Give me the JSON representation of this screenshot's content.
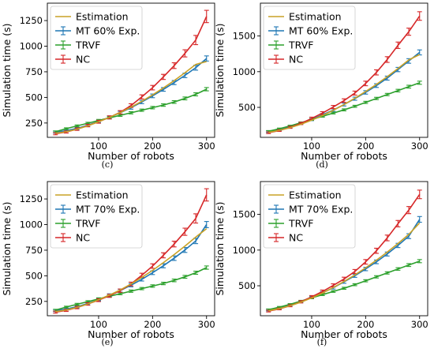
{
  "chart_data": [
    {
      "type": "line",
      "caption": "(c)",
      "xlabel": "Number of robots",
      "ylabel": "Simulation time (s)",
      "xlim": [
        5,
        315
      ],
      "ylim": [
        110,
        1420
      ],
      "xticks": [
        100,
        200,
        300
      ],
      "yticks": [
        250,
        500,
        750,
        1000,
        1250
      ],
      "legend_position": "top-left",
      "grid": false,
      "x": [
        20,
        40,
        60,
        80,
        100,
        120,
        140,
        160,
        180,
        200,
        220,
        240,
        260,
        280,
        300
      ],
      "series": [
        {
          "name": "Estimation",
          "style": "line",
          "color": "#c9a227",
          "values": [
            150,
            165,
            190,
            222,
            262,
            305,
            352,
            405,
            462,
            525,
            592,
            664,
            741,
            822,
            850
          ]
        },
        {
          "name": "MT 60% Exp.",
          "style": "errorbar",
          "color": "#1f77b4",
          "values": [
            160,
            175,
            197,
            228,
            265,
            305,
            350,
            400,
            455,
            515,
            578,
            645,
            715,
            790,
            880
          ],
          "errors": [
            10,
            10,
            12,
            12,
            12,
            14,
            14,
            15,
            16,
            18,
            18,
            20,
            22,
            24,
            25
          ]
        },
        {
          "name": "TRVF",
          "style": "errorbar",
          "color": "#2ca02c",
          "values": [
            165,
            195,
            222,
            248,
            275,
            300,
            325,
            350,
            375,
            400,
            425,
            455,
            490,
            530,
            580
          ],
          "errors": [
            8,
            8,
            9,
            9,
            10,
            10,
            10,
            11,
            11,
            12,
            12,
            13,
            14,
            15,
            16
          ]
        },
        {
          "name": "NC",
          "style": "errorbar",
          "color": "#d62728",
          "values": [
            145,
            162,
            190,
            225,
            262,
            305,
            355,
            420,
            505,
            595,
            700,
            810,
            930,
            1060,
            1290
          ],
          "errors": [
            10,
            10,
            12,
            12,
            14,
            15,
            16,
            18,
            20,
            22,
            25,
            28,
            35,
            45,
            60
          ]
        }
      ]
    },
    {
      "type": "line",
      "caption": "(d)",
      "xlabel": "Number of robots",
      "ylabel": "Simulation time (s)",
      "xlim": [
        5,
        315
      ],
      "ylim": [
        80,
        1960
      ],
      "xticks": [
        100,
        200,
        300
      ],
      "yticks": [
        500,
        1000,
        1500
      ],
      "legend_position": "top-left",
      "grid": false,
      "x": [
        20,
        40,
        60,
        80,
        100,
        120,
        140,
        160,
        180,
        200,
        220,
        240,
        260,
        280,
        300
      ],
      "series": [
        {
          "name": "Estimation",
          "style": "line",
          "color": "#c9a227",
          "values": [
            150,
            178,
            215,
            262,
            320,
            385,
            458,
            540,
            628,
            722,
            822,
            930,
            1045,
            1165,
            1240
          ]
        },
        {
          "name": "MT 60% Exp.",
          "style": "errorbar",
          "color": "#1f77b4",
          "values": [
            160,
            185,
            225,
            275,
            330,
            395,
            462,
            540,
            622,
            710,
            805,
            910,
            1030,
            1150,
            1270
          ],
          "errors": [
            12,
            12,
            14,
            14,
            16,
            18,
            18,
            20,
            22,
            24,
            26,
            28,
            30,
            32,
            35
          ]
        },
        {
          "name": "TRVF",
          "style": "errorbar",
          "color": "#2ca02c",
          "values": [
            165,
            200,
            240,
            285,
            330,
            375,
            420,
            465,
            515,
            570,
            625,
            680,
            735,
            790,
            845
          ],
          "errors": [
            10,
            10,
            10,
            11,
            12,
            12,
            12,
            14,
            14,
            15,
            16,
            16,
            18,
            20,
            22
          ]
        },
        {
          "name": "NC",
          "style": "errorbar",
          "color": "#d62728",
          "values": [
            145,
            175,
            220,
            275,
            345,
            420,
            505,
            595,
            700,
            835,
            990,
            1170,
            1370,
            1560,
            1780
          ],
          "errors": [
            12,
            12,
            14,
            16,
            18,
            20,
            22,
            25,
            28,
            32,
            36,
            40,
            45,
            50,
            60
          ]
        }
      ]
    },
    {
      "type": "line",
      "caption": "(e)",
      "xlabel": "Number of robots",
      "ylabel": "Simulation time (s)",
      "xlim": [
        5,
        315
      ],
      "ylim": [
        110,
        1420
      ],
      "xticks": [
        100,
        200,
        300
      ],
      "yticks": [
        250,
        500,
        750,
        1000,
        1250
      ],
      "legend_position": "top-left",
      "grid": false,
      "x": [
        20,
        40,
        60,
        80,
        100,
        120,
        140,
        160,
        180,
        200,
        220,
        240,
        260,
        280,
        300
      ],
      "series": [
        {
          "name": "Estimation",
          "style": "line",
          "color": "#c9a227",
          "values": [
            150,
            166,
            192,
            225,
            266,
            312,
            362,
            420,
            484,
            553,
            628,
            707,
            790,
            878,
            960
          ]
        },
        {
          "name": "MT 70% Exp.",
          "style": "errorbar",
          "color": "#1f77b4",
          "values": [
            160,
            175,
            198,
            230,
            268,
            310,
            355,
            408,
            465,
            530,
            598,
            672,
            752,
            840,
            1000
          ],
          "errors": [
            10,
            10,
            12,
            12,
            12,
            14,
            14,
            16,
            16,
            18,
            20,
            22,
            24,
            26,
            30
          ]
        },
        {
          "name": "TRVF",
          "style": "errorbar",
          "color": "#2ca02c",
          "values": [
            165,
            195,
            222,
            248,
            275,
            300,
            325,
            350,
            375,
            400,
            425,
            455,
            490,
            530,
            580
          ],
          "errors": [
            8,
            8,
            9,
            9,
            10,
            10,
            10,
            11,
            11,
            12,
            12,
            13,
            14,
            15,
            16
          ]
        },
        {
          "name": "NC",
          "style": "errorbar",
          "color": "#d62728",
          "values": [
            145,
            162,
            190,
            225,
            262,
            305,
            355,
            420,
            505,
            595,
            700,
            810,
            930,
            1060,
            1290
          ],
          "errors": [
            10,
            10,
            12,
            12,
            14,
            15,
            16,
            18,
            20,
            22,
            25,
            28,
            35,
            45,
            60
          ]
        }
      ]
    },
    {
      "type": "line",
      "caption": "(f)",
      "xlabel": "Number of robots",
      "ylabel": "Simulation time (s)",
      "xlim": [
        5,
        315
      ],
      "ylim": [
        80,
        1960
      ],
      "xticks": [
        100,
        200,
        300
      ],
      "yticks": [
        500,
        1000,
        1500
      ],
      "legend_position": "top-left",
      "grid": false,
      "x": [
        20,
        40,
        60,
        80,
        100,
        120,
        140,
        160,
        180,
        200,
        220,
        240,
        260,
        280,
        300
      ],
      "series": [
        {
          "name": "Estimation",
          "style": "line",
          "color": "#c9a227",
          "values": [
            150,
            180,
            220,
            270,
            330,
            398,
            475,
            560,
            652,
            752,
            858,
            972,
            1092,
            1220,
            1380
          ]
        },
        {
          "name": "MT 70% Exp.",
          "style": "errorbar",
          "color": "#1f77b4",
          "values": [
            160,
            185,
            228,
            280,
            338,
            402,
            472,
            555,
            640,
            735,
            835,
            945,
            1065,
            1195,
            1430
          ],
          "errors": [
            12,
            12,
            14,
            14,
            16,
            18,
            18,
            20,
            22,
            24,
            26,
            28,
            30,
            34,
            40
          ]
        },
        {
          "name": "TRVF",
          "style": "errorbar",
          "color": "#2ca02c",
          "values": [
            165,
            200,
            240,
            285,
            330,
            375,
            420,
            465,
            515,
            570,
            625,
            680,
            735,
            790,
            845
          ],
          "errors": [
            10,
            10,
            10,
            11,
            12,
            12,
            12,
            14,
            14,
            15,
            16,
            16,
            18,
            20,
            22
          ]
        },
        {
          "name": "NC",
          "style": "errorbar",
          "color": "#d62728",
          "values": [
            145,
            175,
            220,
            275,
            345,
            420,
            505,
            595,
            700,
            835,
            990,
            1170,
            1370,
            1560,
            1780
          ],
          "errors": [
            12,
            12,
            14,
            16,
            18,
            20,
            22,
            25,
            28,
            32,
            36,
            40,
            45,
            50,
            60
          ]
        }
      ]
    }
  ]
}
